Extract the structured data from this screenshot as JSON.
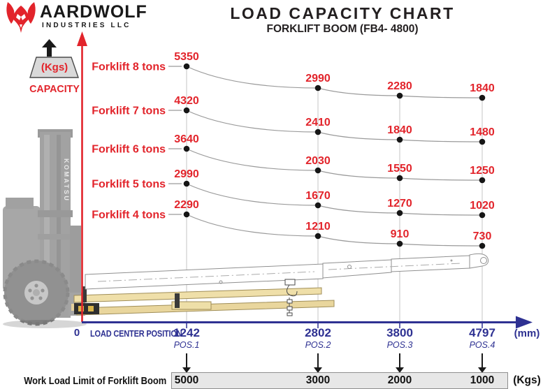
{
  "logo": {
    "brand": "AARDWOLF",
    "subtitle": "INDUSTRIES LLC"
  },
  "header": {
    "title": "LOAD CAPACITY CHART",
    "subtitle": "FORKLIFT BOOM (FB4- 4800)"
  },
  "capacity_axis": {
    "unit": "(Kgs)",
    "label": "CAPACITY"
  },
  "x_axis": {
    "origin": "0",
    "label": "LOAD CENTER POSITION",
    "unit": "(mm)",
    "positions": [
      {
        "value": "1242",
        "name": "POS.1"
      },
      {
        "value": "2802",
        "name": "POS.2"
      },
      {
        "value": "3800",
        "name": "POS.3"
      },
      {
        "value": "4797",
        "name": "POS.4"
      }
    ]
  },
  "work_load_limit": {
    "label": "Work Load Limit of Forklift Boom",
    "unit": "(Kgs)",
    "values": [
      "5000",
      "3000",
      "2000",
      "1000"
    ]
  },
  "illustration": {
    "forklift_brand": "KOMATSU"
  },
  "colors": {
    "red": "#e2242b",
    "navy": "#2e3192",
    "curve": "#9a9a9a",
    "dot": "#161616",
    "grid": "#c6c6c6"
  },
  "chart_data": {
    "type": "line",
    "title": "LOAD CAPACITY CHART",
    "subtitle": "FORKLIFT BOOM (FB4- 4800)",
    "x": [
      1242,
      2802,
      3800,
      4797
    ],
    "x_label": "LOAD CENTER POSITION",
    "x_unit": "mm",
    "y_label": "CAPACITY",
    "y_unit": "Kgs",
    "positions": [
      "POS.1",
      "POS.2",
      "POS.3",
      "POS.4"
    ],
    "grid": "vertical-only",
    "legend_position": "left-of-each-curve",
    "series": [
      {
        "name": "Forklift 8 tons",
        "values": [
          5350,
          2990,
          2280,
          1840
        ]
      },
      {
        "name": "Forklift 7 tons",
        "values": [
          4320,
          2410,
          1840,
          1480
        ]
      },
      {
        "name": "Forklift 6 tons",
        "values": [
          3640,
          2030,
          1550,
          1250
        ]
      },
      {
        "name": "Forklift 5 tons",
        "values": [
          2990,
          1670,
          1270,
          1020
        ]
      },
      {
        "name": "Forklift 4 tons",
        "values": [
          2290,
          1210,
          910,
          730
        ]
      }
    ],
    "work_load_limit": {
      "label": "Work Load Limit of Forklift Boom",
      "values": [
        5000,
        3000,
        2000,
        1000
      ],
      "unit": "Kgs"
    }
  }
}
